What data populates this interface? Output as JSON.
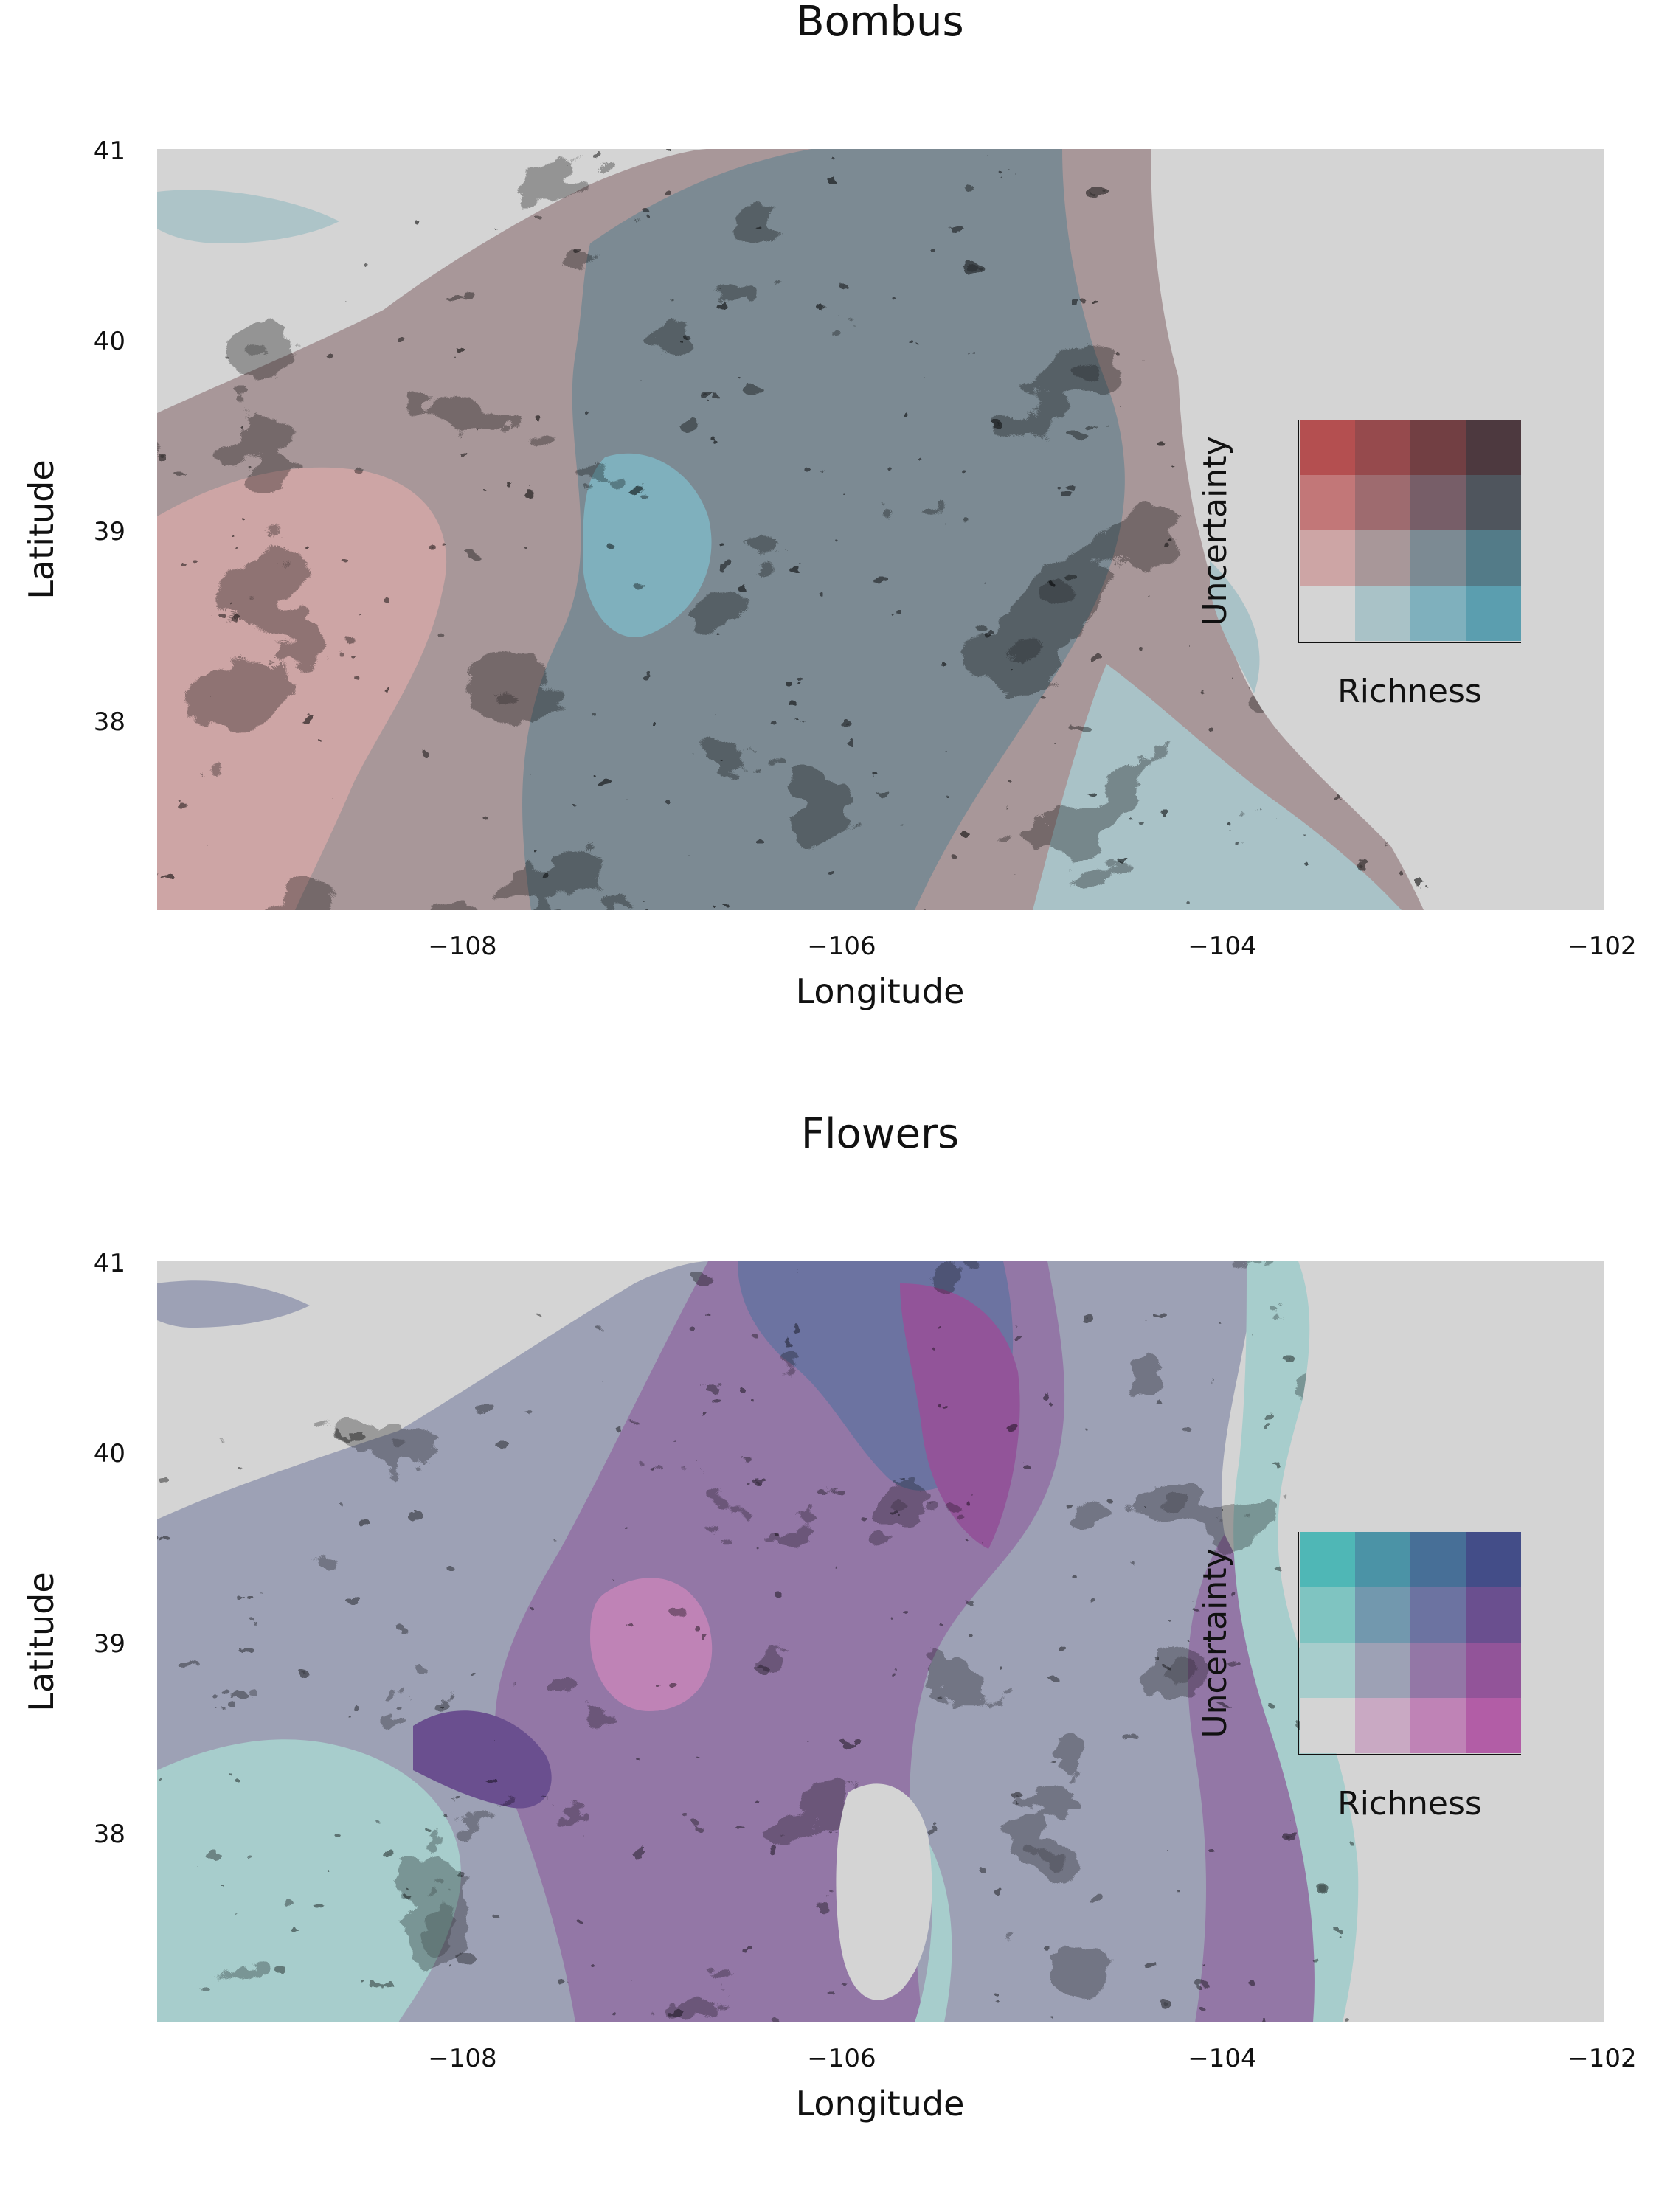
{
  "chart_data": [
    {
      "type": "heatmap",
      "title": "Bombus",
      "xlabel": "Longitude",
      "ylabel": "Latitude",
      "xlim": [
        -109.8,
        -102
      ],
      "ylim": [
        37,
        41
      ],
      "xticks": [
        -108,
        -106,
        -104,
        -102
      ],
      "yticks": [
        41,
        40,
        39,
        38
      ],
      "xtick_labels": [
        "−108",
        "−106",
        "−104",
        "−102"
      ],
      "ytick_labels": [
        "41",
        "40",
        "39",
        "38"
      ],
      "grid": false,
      "background_color": "#d4d4d4",
      "legend": {
        "kind": "bivariate-4x4",
        "placement": "right",
        "x_label": "Richness",
        "y_label": "Uncertainty",
        "rows_high_to_low_uncertainty": [
          [
            "#b44f50",
            "#964a4d",
            "#723f43",
            "#4d393f"
          ],
          [
            "#c27778",
            "#9e6b6f",
            "#775e68",
            "#4f555d"
          ],
          [
            "#cda5a5",
            "#a89799",
            "#7c8a93",
            "#537b88"
          ],
          [
            "#d4d4d4",
            "#a9c2c7",
            "#7fb0bd",
            "#5b9eaf"
          ]
        ]
      },
      "palette": [
        "#d4d4d4",
        "#a9c2c7",
        "#cda5a5",
        "#a89799",
        "#9e6b6f",
        "#7c8a93",
        "#5b9eaf",
        "#964a4d",
        "#c27778"
      ]
    },
    {
      "type": "heatmap",
      "title": "Flowers",
      "xlabel": "Longitude",
      "ylabel": "Latitude",
      "xlim": [
        -109.8,
        -102
      ],
      "ylim": [
        37,
        41
      ],
      "xticks": [
        -108,
        -106,
        -104,
        -102
      ],
      "yticks": [
        41,
        40,
        39,
        38
      ],
      "xtick_labels": [
        "−108",
        "−106",
        "−104",
        "−102"
      ],
      "ytick_labels": [
        "41",
        "40",
        "39",
        "38"
      ],
      "grid": false,
      "background_color": "#d4d4d4",
      "legend": {
        "kind": "bivariate-4x4",
        "placement": "right",
        "x_label": "Richness",
        "y_label": "Uncertainty",
        "rows_high_to_low_uncertainty": [
          [
            "#4fb7b6",
            "#4b93a6",
            "#476f97",
            "#434d88"
          ],
          [
            "#7fc4c1",
            "#7298ae",
            "#6c73a1",
            "#6a4f8f"
          ],
          [
            "#a7cdcc",
            "#9da1b5",
            "#9377a6",
            "#925499"
          ],
          [
            "#d4d4d4",
            "#c9a9c3",
            "#bf83b6",
            "#b25da6"
          ]
        ]
      },
      "palette": [
        "#d4d4d4",
        "#a7cdcc",
        "#9da1b5",
        "#9377a6",
        "#6c73a1",
        "#7298ae",
        "#925499",
        "#bf83b6",
        "#c9a9c3"
      ]
    }
  ]
}
